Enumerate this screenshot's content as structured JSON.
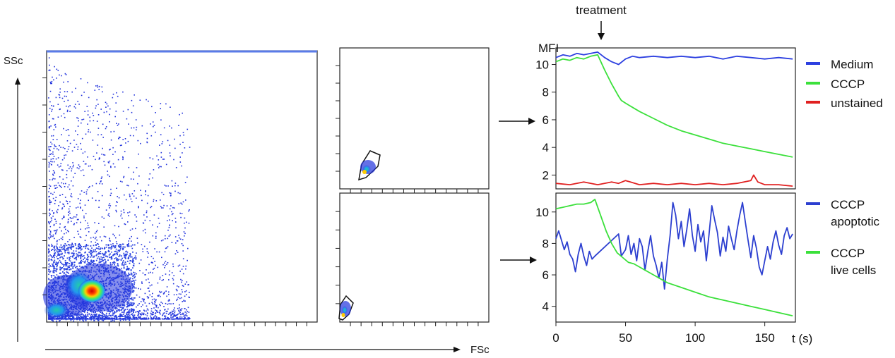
{
  "colors": {
    "medium": "#2c3fe0",
    "cccp": "#3be03b",
    "unstained": "#e02020",
    "apoptotic": "#2c3fd0",
    "live": "#3be03b"
  },
  "scatter": {
    "ylabel": "SSc",
    "xlabel": "FSc"
  },
  "annotation": {
    "treatment": "treatment"
  },
  "chart_data": [
    {
      "type": "line",
      "ylabel": "MFI",
      "xlim": [
        0,
        172
      ],
      "ylim": [
        1.0,
        11.2
      ],
      "yticks": [
        2,
        4,
        6,
        8,
        10
      ],
      "legend_position": "right",
      "series": [
        {
          "name": "Medium",
          "color_key": "medium",
          "points": [
            [
              0,
              10.5
            ],
            [
              5,
              10.7
            ],
            [
              10,
              10.6
            ],
            [
              15,
              10.8
            ],
            [
              20,
              10.7
            ],
            [
              25,
              10.8
            ],
            [
              30,
              10.9
            ],
            [
              35,
              10.5
            ],
            [
              40,
              10.2
            ],
            [
              45,
              10.0
            ],
            [
              50,
              10.4
            ],
            [
              55,
              10.6
            ],
            [
              60,
              10.5
            ],
            [
              70,
              10.6
            ],
            [
              80,
              10.5
            ],
            [
              90,
              10.6
            ],
            [
              100,
              10.5
            ],
            [
              110,
              10.6
            ],
            [
              120,
              10.4
            ],
            [
              130,
              10.6
            ],
            [
              140,
              10.5
            ],
            [
              150,
              10.4
            ],
            [
              160,
              10.5
            ],
            [
              170,
              10.4
            ]
          ]
        },
        {
          "name": "CCCP",
          "color_key": "cccp",
          "points": [
            [
              0,
              10.2
            ],
            [
              5,
              10.4
            ],
            [
              10,
              10.3
            ],
            [
              15,
              10.5
            ],
            [
              20,
              10.4
            ],
            [
              25,
              10.6
            ],
            [
              30,
              10.7
            ],
            [
              35,
              9.6
            ],
            [
              40,
              8.6
            ],
            [
              45,
              7.7
            ],
            [
              47,
              7.4
            ],
            [
              50,
              7.2
            ],
            [
              55,
              6.9
            ],
            [
              60,
              6.6
            ],
            [
              70,
              6.1
            ],
            [
              80,
              5.6
            ],
            [
              90,
              5.2
            ],
            [
              100,
              4.9
            ],
            [
              110,
              4.6
            ],
            [
              120,
              4.3
            ],
            [
              130,
              4.1
            ],
            [
              140,
              3.9
            ],
            [
              150,
              3.7
            ],
            [
              160,
              3.5
            ],
            [
              170,
              3.3
            ]
          ]
        },
        {
          "name": "unstained",
          "color_key": "unstained",
          "points": [
            [
              0,
              1.4
            ],
            [
              10,
              1.3
            ],
            [
              20,
              1.5
            ],
            [
              30,
              1.3
            ],
            [
              40,
              1.5
            ],
            [
              45,
              1.4
            ],
            [
              50,
              1.6
            ],
            [
              60,
              1.3
            ],
            [
              70,
              1.4
            ],
            [
              80,
              1.3
            ],
            [
              90,
              1.4
            ],
            [
              100,
              1.3
            ],
            [
              110,
              1.4
            ],
            [
              120,
              1.3
            ],
            [
              130,
              1.4
            ],
            [
              140,
              1.6
            ],
            [
              142,
              2.0
            ],
            [
              145,
              1.5
            ],
            [
              150,
              1.3
            ],
            [
              160,
              1.3
            ],
            [
              170,
              1.2
            ]
          ]
        }
      ]
    },
    {
      "type": "line",
      "xlabel": "t (s)",
      "xlim": [
        0,
        172
      ],
      "ylim": [
        3.0,
        11.2
      ],
      "xticks": [
        0,
        50,
        100,
        150
      ],
      "yticks": [
        4,
        6,
        8,
        10
      ],
      "legend_position": "right",
      "series": [
        {
          "name": "CCCP apoptotic",
          "color_key": "apoptotic",
          "points": [
            [
              0,
              8.3
            ],
            [
              2,
              8.8
            ],
            [
              4,
              8.2
            ],
            [
              6,
              7.6
            ],
            [
              8,
              8.1
            ],
            [
              10,
              7.3
            ],
            [
              12,
              7.0
            ],
            [
              14,
              6.2
            ],
            [
              16,
              7.3
            ],
            [
              18,
              8.0
            ],
            [
              20,
              7.2
            ],
            [
              22,
              6.6
            ],
            [
              24,
              7.5
            ],
            [
              26,
              7.0
            ],
            [
              28,
              7.2
            ],
            [
              45,
              8.6
            ],
            [
              47,
              7.2
            ],
            [
              50,
              7.6
            ],
            [
              52,
              8.5
            ],
            [
              54,
              7.3
            ],
            [
              56,
              8.0
            ],
            [
              58,
              6.9
            ],
            [
              60,
              8.3
            ],
            [
              62,
              7.8
            ],
            [
              64,
              6.3
            ],
            [
              66,
              7.5
            ],
            [
              68,
              8.5
            ],
            [
              70,
              7.2
            ],
            [
              72,
              6.6
            ],
            [
              74,
              5.8
            ],
            [
              76,
              6.8
            ],
            [
              78,
              5.1
            ],
            [
              80,
              7.0
            ],
            [
              82,
              8.5
            ],
            [
              84,
              10.6
            ],
            [
              86,
              9.8
            ],
            [
              88,
              8.3
            ],
            [
              90,
              9.4
            ],
            [
              92,
              7.8
            ],
            [
              94,
              8.9
            ],
            [
              96,
              10.2
            ],
            [
              98,
              8.5
            ],
            [
              100,
              7.5
            ],
            [
              102,
              9.2
            ],
            [
              104,
              8.1
            ],
            [
              106,
              8.8
            ],
            [
              108,
              6.9
            ],
            [
              110,
              8.6
            ],
            [
              112,
              10.4
            ],
            [
              114,
              9.5
            ],
            [
              116,
              8.7
            ],
            [
              118,
              7.2
            ],
            [
              120,
              8.4
            ],
            [
              122,
              7.5
            ],
            [
              124,
              9.1
            ],
            [
              126,
              8.3
            ],
            [
              128,
              7.6
            ],
            [
              130,
              8.8
            ],
            [
              132,
              9.8
            ],
            [
              134,
              10.6
            ],
            [
              136,
              9.4
            ],
            [
              138,
              8.2
            ],
            [
              140,
              7.1
            ],
            [
              142,
              8.5
            ],
            [
              144,
              7.7
            ],
            [
              146,
              6.5
            ],
            [
              148,
              6.0
            ],
            [
              150,
              6.9
            ],
            [
              152,
              7.8
            ],
            [
              154,
              7.0
            ],
            [
              156,
              8.1
            ],
            [
              158,
              8.8
            ],
            [
              160,
              7.9
            ],
            [
              162,
              7.3
            ],
            [
              164,
              8.5
            ],
            [
              166,
              9.0
            ],
            [
              168,
              8.3
            ],
            [
              170,
              8.6
            ]
          ]
        },
        {
          "name": "CCCP live cells",
          "color_key": "live",
          "points": [
            [
              0,
              10.2
            ],
            [
              5,
              10.3
            ],
            [
              10,
              10.4
            ],
            [
              15,
              10.5
            ],
            [
              20,
              10.5
            ],
            [
              25,
              10.6
            ],
            [
              28,
              10.8
            ],
            [
              32,
              9.8
            ],
            [
              36,
              8.8
            ],
            [
              40,
              8.0
            ],
            [
              44,
              7.4
            ],
            [
              48,
              7.1
            ],
            [
              52,
              6.8
            ],
            [
              56,
              6.7
            ],
            [
              60,
              6.5
            ],
            [
              70,
              6.0
            ],
            [
              80,
              5.5
            ],
            [
              90,
              5.2
            ],
            [
              100,
              4.9
            ],
            [
              110,
              4.6
            ],
            [
              120,
              4.4
            ],
            [
              130,
              4.2
            ],
            [
              140,
              4.0
            ],
            [
              150,
              3.8
            ],
            [
              160,
              3.6
            ],
            [
              170,
              3.4
            ]
          ]
        }
      ]
    }
  ]
}
